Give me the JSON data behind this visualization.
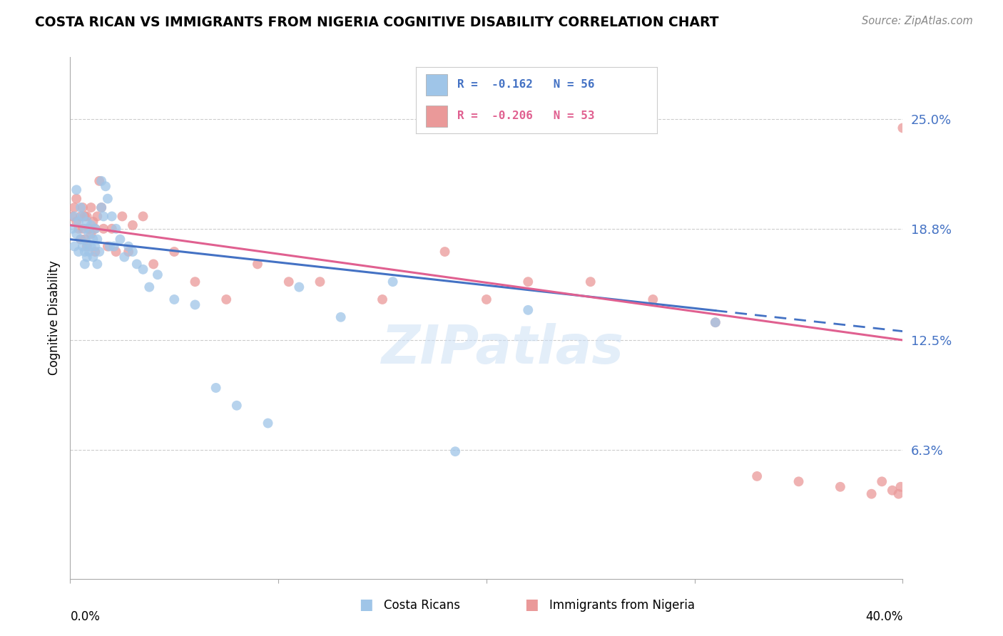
{
  "title": "COSTA RICAN VS IMMIGRANTS FROM NIGERIA COGNITIVE DISABILITY CORRELATION CHART",
  "source": "Source: ZipAtlas.com",
  "ylabel": "Cognitive Disability",
  "y_ticks": [
    0.063,
    0.125,
    0.188,
    0.25
  ],
  "y_tick_labels": [
    "6.3%",
    "12.5%",
    "18.8%",
    "25.0%"
  ],
  "x_min": 0.0,
  "x_max": 0.4,
  "y_min": -0.01,
  "y_max": 0.285,
  "legend_label1": "Costa Ricans",
  "legend_label2": "Immigrants from Nigeria",
  "color_blue": "#9fc5e8",
  "color_pink": "#ea9999",
  "color_line_blue": "#4472c4",
  "color_line_pink": "#e06090",
  "color_tick_label": "#4472c4",
  "watermark": "ZIPatlas",
  "cr_x": [
    0.001,
    0.002,
    0.002,
    0.003,
    0.003,
    0.004,
    0.004,
    0.005,
    0.005,
    0.006,
    0.006,
    0.007,
    0.007,
    0.007,
    0.008,
    0.008,
    0.008,
    0.009,
    0.009,
    0.01,
    0.01,
    0.011,
    0.011,
    0.012,
    0.012,
    0.013,
    0.013,
    0.014,
    0.015,
    0.015,
    0.016,
    0.017,
    0.018,
    0.019,
    0.02,
    0.021,
    0.022,
    0.024,
    0.026,
    0.028,
    0.03,
    0.032,
    0.035,
    0.038,
    0.042,
    0.05,
    0.06,
    0.07,
    0.08,
    0.095,
    0.11,
    0.13,
    0.155,
    0.185,
    0.22,
    0.31
  ],
  "cr_y": [
    0.188,
    0.195,
    0.178,
    0.21,
    0.185,
    0.192,
    0.175,
    0.2,
    0.182,
    0.195,
    0.178,
    0.188,
    0.175,
    0.168,
    0.192,
    0.18,
    0.172,
    0.185,
    0.175,
    0.19,
    0.178,
    0.182,
    0.172,
    0.188,
    0.178,
    0.182,
    0.168,
    0.175,
    0.215,
    0.2,
    0.195,
    0.212,
    0.205,
    0.178,
    0.195,
    0.178,
    0.188,
    0.182,
    0.172,
    0.178,
    0.175,
    0.168,
    0.165,
    0.155,
    0.162,
    0.148,
    0.145,
    0.098,
    0.088,
    0.078,
    0.155,
    0.138,
    0.158,
    0.062,
    0.142,
    0.135
  ],
  "ng_x": [
    0.001,
    0.002,
    0.003,
    0.003,
    0.004,
    0.005,
    0.005,
    0.006,
    0.006,
    0.007,
    0.007,
    0.008,
    0.008,
    0.009,
    0.01,
    0.01,
    0.011,
    0.012,
    0.012,
    0.013,
    0.014,
    0.015,
    0.016,
    0.018,
    0.02,
    0.022,
    0.025,
    0.028,
    0.03,
    0.035,
    0.04,
    0.05,
    0.06,
    0.075,
    0.09,
    0.105,
    0.12,
    0.15,
    0.18,
    0.2,
    0.22,
    0.25,
    0.28,
    0.31,
    0.33,
    0.35,
    0.37,
    0.385,
    0.39,
    0.395,
    0.398,
    0.399,
    0.4
  ],
  "ng_y": [
    0.195,
    0.2,
    0.192,
    0.205,
    0.188,
    0.195,
    0.182,
    0.2,
    0.188,
    0.195,
    0.182,
    0.195,
    0.178,
    0.188,
    0.2,
    0.185,
    0.192,
    0.188,
    0.175,
    0.195,
    0.215,
    0.2,
    0.188,
    0.178,
    0.188,
    0.175,
    0.195,
    0.175,
    0.19,
    0.195,
    0.168,
    0.175,
    0.158,
    0.148,
    0.168,
    0.158,
    0.158,
    0.148,
    0.175,
    0.148,
    0.158,
    0.158,
    0.148,
    0.135,
    0.048,
    0.045,
    0.042,
    0.038,
    0.045,
    0.04,
    0.038,
    0.042,
    0.245
  ],
  "line_cr_x0": 0.0,
  "line_cr_x1": 0.4,
  "line_cr_y0": 0.182,
  "line_cr_y1": 0.13,
  "line_cr_solid_end": 0.31,
  "line_ng_x0": 0.0,
  "line_ng_x1": 0.4,
  "line_ng_y0": 0.19,
  "line_ng_y1": 0.125
}
